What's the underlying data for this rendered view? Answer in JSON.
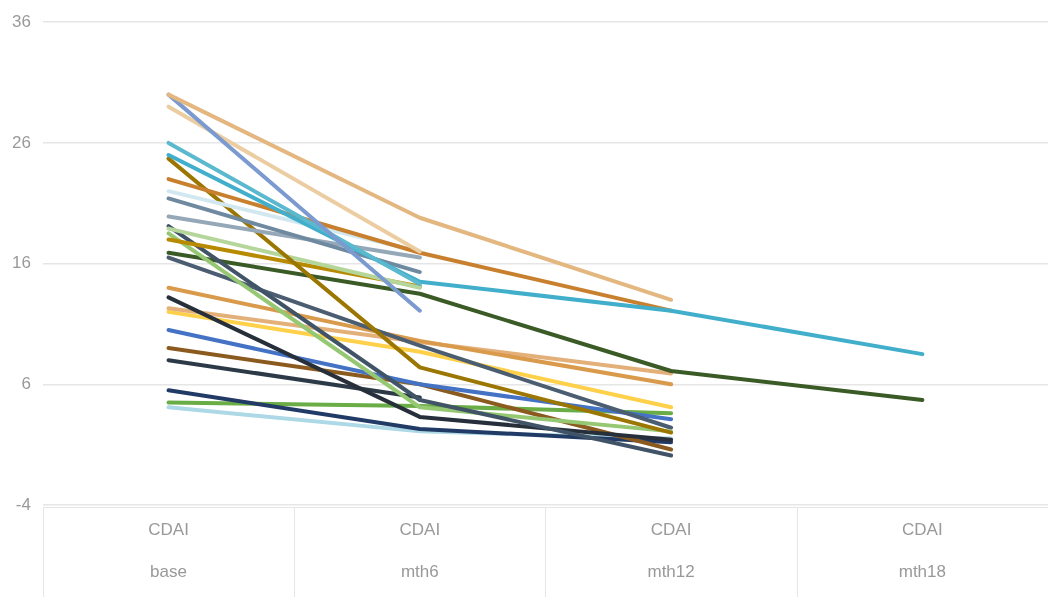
{
  "chart_data": {
    "type": "line",
    "categories": [
      "CDAI\nbase",
      "CDAI\nmth6",
      "CDAI\nmth12",
      "CDAI\nmth18"
    ],
    "ylim": [
      -4,
      36
    ],
    "yticks": [
      -4,
      6,
      16,
      26,
      36
    ],
    "grid": "y",
    "legend": false,
    "marker": "none",
    "line_style": "solid",
    "series": [
      {
        "color": "#e3b77f",
        "values": [
          30.0,
          19.8,
          13.0,
          null
        ]
      },
      {
        "color": "#7b9ad0",
        "values": [
          30.0,
          12.1,
          null,
          null
        ]
      },
      {
        "color": "#eccda1",
        "values": [
          29.0,
          17.0,
          null,
          null
        ]
      },
      {
        "color": "#5ab8cf",
        "values": [
          26.0,
          14.3,
          null,
          null
        ]
      },
      {
        "color": "#41afcb",
        "values": [
          25.0,
          14.5,
          12.1,
          8.5
        ]
      },
      {
        "color": "#c8802f",
        "values": [
          23.0,
          16.9,
          12.1,
          null
        ]
      },
      {
        "color": "#d2e8f0",
        "values": [
          22.0,
          17.0,
          null,
          null
        ]
      },
      {
        "color": "#6f8aa0",
        "values": [
          21.4,
          15.3,
          null,
          null
        ]
      },
      {
        "color": "#95a8b8",
        "values": [
          19.9,
          16.5,
          null,
          null
        ]
      },
      {
        "color": "#9b7600",
        "values": [
          24.7,
          7.4,
          2.0,
          null
        ]
      },
      {
        "color": "#b5d69a",
        "values": [
          18.9,
          14.0,
          null,
          null
        ]
      },
      {
        "color": "#b88a00",
        "values": [
          18.0,
          14.1,
          null,
          null
        ]
      },
      {
        "color": "#415467",
        "values": [
          19.1,
          4.7,
          0.1,
          null
        ]
      },
      {
        "color": "#96c873",
        "values": [
          18.5,
          4.1,
          2.1,
          null
        ]
      },
      {
        "color": "#3a5a26",
        "values": [
          16.9,
          13.5,
          7.1,
          4.7
        ]
      },
      {
        "color": "#4b5d70",
        "values": [
          16.5,
          9.2,
          2.4,
          null
        ]
      },
      {
        "color": "#d99a4c",
        "values": [
          14.0,
          9.6,
          6.0,
          null
        ]
      },
      {
        "color": "#262f3a",
        "values": [
          13.2,
          3.3,
          1.4,
          null
        ]
      },
      {
        "color": "#e3b07a",
        "values": [
          12.3,
          9.5,
          6.9,
          null
        ]
      },
      {
        "color": "#ffd04a",
        "values": [
          12.0,
          8.7,
          4.1,
          null
        ]
      },
      {
        "color": "#4472c4",
        "values": [
          10.5,
          6.0,
          3.1,
          null
        ]
      },
      {
        "color": "#8b5a1e",
        "values": [
          9.0,
          6.0,
          0.6,
          null
        ]
      },
      {
        "color": "#2c3a48",
        "values": [
          8.0,
          4.9,
          null,
          null
        ]
      },
      {
        "color": "#223a66",
        "values": [
          5.5,
          2.3,
          1.2,
          null
        ]
      },
      {
        "color": "#6aac46",
        "values": [
          4.5,
          4.2,
          3.6,
          null
        ]
      },
      {
        "color": "#add8e6",
        "values": [
          4.1,
          2.1,
          1.5,
          null
        ]
      }
    ]
  }
}
